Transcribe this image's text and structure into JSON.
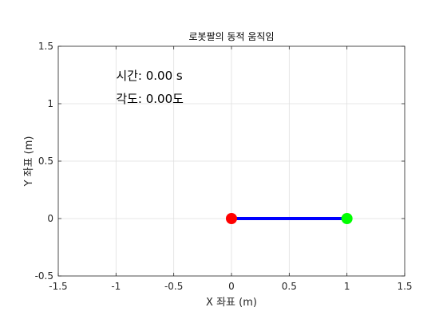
{
  "chart_data": {
    "type": "line",
    "title": "로봇팔의 동적 움직임",
    "xlabel": "X 좌표 (m)",
    "ylabel": "Y 좌표 (m)",
    "xlim": [
      -1.5,
      1.5
    ],
    "ylim": [
      -0.5,
      1.5
    ],
    "xticks": [
      -1.5,
      -1,
      -0.5,
      0,
      0.5,
      1,
      1.5
    ],
    "xtick_labels": [
      "-1.5",
      "-1",
      "-0.5",
      "0",
      "0.5",
      "1",
      "1.5"
    ],
    "yticks": [
      -0.5,
      0,
      0.5,
      1,
      1.5
    ],
    "ytick_labels": [
      "-0.5",
      "0",
      "0.5",
      "1",
      "1.5"
    ],
    "grid": true,
    "series": [
      {
        "x": [
          0,
          1
        ],
        "y": [
          0,
          0
        ],
        "color": "#0000ff",
        "start_marker_color": "#ff0000",
        "end_marker_color": "#00ff00"
      }
    ],
    "annotations": [
      {
        "text": "시간: 0.00 s",
        "x": -1,
        "y": 1.25
      },
      {
        "text": "각도: 0.00도",
        "x": -1,
        "y": 1.05
      }
    ]
  }
}
